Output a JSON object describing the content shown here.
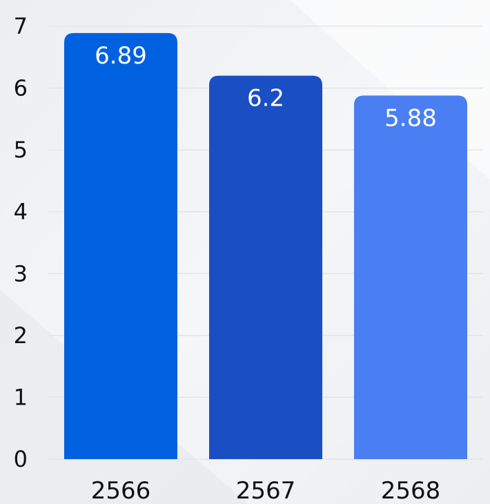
{
  "chart_data": {
    "type": "bar",
    "title": "",
    "xlabel": "",
    "ylabel": "",
    "categories": [
      "2566",
      "2567",
      "2568"
    ],
    "values": [
      6.89,
      6.2,
      5.88
    ],
    "data_labels": [
      "6.89",
      "6.2",
      "5.88"
    ],
    "ylim": [
      0,
      7
    ],
    "yticks": [
      0,
      1,
      2,
      3,
      4,
      5,
      6,
      7
    ],
    "grid": true,
    "legend": "none",
    "colors": [
      "#0061e0",
      "#1a4fc4",
      "#4a7ef3"
    ],
    "background_color": "#f3f4f6"
  }
}
